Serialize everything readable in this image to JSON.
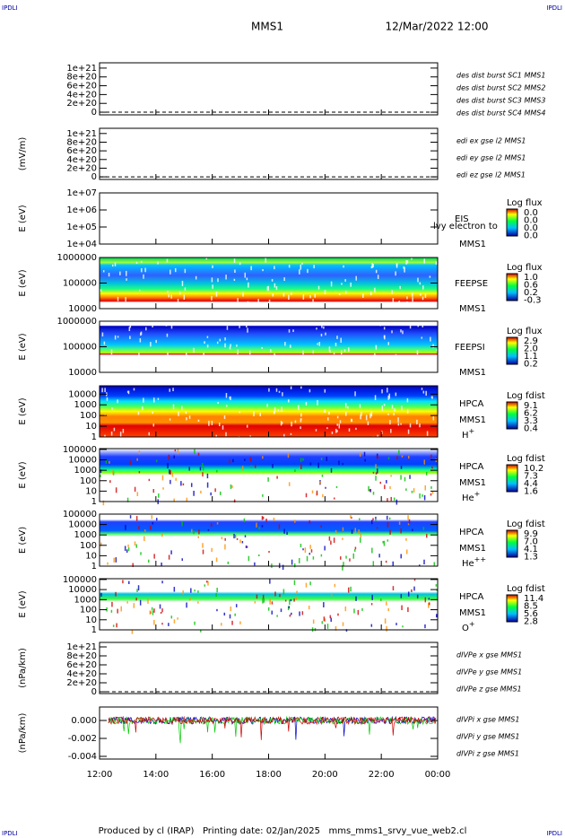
{
  "header": {
    "corner": "IPDLI",
    "spacecraft": "MMS1",
    "datetime": "12/Mar/2022 12:00"
  },
  "footer": "Produced by cl (IRAP)   Printing date: 02/Jan/2025   mms_mms1_srvy_vue_web2.cl",
  "chart_data": [
    {
      "type": "line",
      "ylabel": "",
      "yscale": "linear",
      "zero_line": true,
      "ylim": [
        -6e+19,
        1.12e+21
      ],
      "yticks": [
        0,
        {
          "value": 2e+20,
          "label": "2e+20"
        },
        {
          "value": 4e+20,
          "label": "4e+20"
        },
        {
          "value": 6e+20,
          "label": "6e+20"
        },
        {
          "value": 8e+20,
          "label": "8e+20"
        },
        {
          "value": 1e+21,
          "label": "1e+21"
        }
      ],
      "legend": [
        {
          "name": "des dist burst SC1 MMS1",
          "color": "#0000c8"
        },
        {
          "name": "des dist burst SC2 MMS2",
          "color": "#d000d0"
        },
        {
          "name": "des dist burst SC3 MMS3",
          "color": "#d00000"
        },
        {
          "name": "des dist burst SC4 MMS4",
          "color": "#00c800"
        }
      ]
    },
    {
      "type": "line",
      "ylabel": "(mV/m)",
      "yscale": "linear",
      "zero_line": true,
      "ylim": [
        -6e+19,
        1.12e+21
      ],
      "yticks": [
        0,
        {
          "value": 2e+20,
          "label": "2e+20"
        },
        {
          "value": 4e+20,
          "label": "4e+20"
        },
        {
          "value": 6e+20,
          "label": "6e+20"
        },
        {
          "value": 8e+20,
          "label": "8e+20"
        },
        {
          "value": 1e+21,
          "label": "1e+21"
        }
      ],
      "legend": [
        {
          "name": "edi ex gse l2 MMS1",
          "color": "#d00000"
        },
        {
          "name": "edi ey gse l2 MMS1",
          "color": "#00c800"
        },
        {
          "name": "edi ez gse l2 MMS1",
          "color": "#0000c8"
        }
      ]
    },
    {
      "type": "spectrogram",
      "ylabel": "E (eV)",
      "yscale": "log",
      "ylim": [
        10000,
        10000000
      ],
      "yticks": [
        {
          "value": 10000,
          "label": "1e+04"
        },
        {
          "value": 100000,
          "label": "1e+05"
        },
        {
          "value": 1000000,
          "label": "1e+06"
        },
        {
          "value": 10000000,
          "label": "1e+07"
        }
      ],
      "instrument": "EIS",
      "probe": "MMS1",
      "overlay": "lvy electron to",
      "colorbar": {
        "title": "Log flux",
        "labels": [
          "0.0",
          "0.0",
          "0.0",
          "0.0"
        ]
      }
    },
    {
      "type": "spectrogram",
      "ylabel": "E (eV)",
      "yscale": "log",
      "ylim": [
        10000,
        1000000
      ],
      "yticks": [
        10000,
        100000,
        1000000
      ],
      "instrument": "FEEPSE",
      "probe": "MMS1",
      "colorbar": {
        "title": "Log flux",
        "labels": [
          "1.0",
          "0.6",
          "0.2",
          "-0.3"
        ]
      }
    },
    {
      "type": "spectrogram",
      "ylabel": "E (eV)",
      "yscale": "log",
      "ylim": [
        10000,
        1000000
      ],
      "yticks": [
        10000,
        100000,
        1000000
      ],
      "instrument": "FEEPSI",
      "probe": "MMS1",
      "colorbar": {
        "title": "Log flux",
        "labels": [
          "2.9",
          "2.0",
          "1.1",
          "0.2"
        ]
      }
    },
    {
      "type": "spectrogram",
      "ylabel": "E (eV)",
      "yscale": "log",
      "ylim": [
        1,
        60000
      ],
      "yticks": [
        1,
        10,
        100,
        1000,
        10000
      ],
      "instrument": "HPCA",
      "probe": "MMS1",
      "species": {
        "base": "H",
        "charge": "+"
      },
      "colorbar": {
        "title": "Log fdist",
        "labels": [
          "9.1",
          "6.2",
          "3.3",
          "0.4"
        ]
      }
    },
    {
      "type": "spectrogram",
      "ylabel": "E (eV)",
      "yscale": "log",
      "ylim": [
        1,
        120000
      ],
      "yticks": [
        1,
        10,
        100,
        1000,
        10000,
        100000
      ],
      "instrument": "HPCA",
      "probe": "MMS1",
      "species": {
        "base": "He",
        "charge": "+"
      },
      "colorbar": {
        "title": "Log fdist",
        "labels": [
          "10.2",
          "7.3",
          "4.4",
          "1.6"
        ]
      }
    },
    {
      "type": "spectrogram",
      "ylabel": "E (eV)",
      "yscale": "log",
      "ylim": [
        1,
        100000
      ],
      "yticks": [
        1,
        10,
        100,
        1000,
        10000,
        100000
      ],
      "instrument": "HPCA",
      "probe": "MMS1",
      "species": {
        "base": "He",
        "charge": "++"
      },
      "colorbar": {
        "title": "Log fdist",
        "labels": [
          "9.9",
          "7.0",
          "4.1",
          "1.3"
        ]
      }
    },
    {
      "type": "spectrogram",
      "ylabel": "E (eV)",
      "yscale": "log",
      "ylim": [
        1,
        120000
      ],
      "yticks": [
        1,
        10,
        100,
        1000,
        10000,
        100000
      ],
      "instrument": "HPCA",
      "probe": "MMS1",
      "species": {
        "base": "O",
        "charge": "+"
      },
      "colorbar": {
        "title": "Log fdist",
        "labels": [
          "11.4",
          "8.5",
          "5.6",
          "2.8"
        ]
      }
    },
    {
      "type": "line",
      "ylabel": "(nPa/km)",
      "yscale": "linear",
      "zero_line": true,
      "ylim": [
        -4e+19,
        1.1e+21
      ],
      "yticks": [
        0,
        {
          "value": 2e+20,
          "label": "2e+20"
        },
        {
          "value": 4e+20,
          "label": "4e+20"
        },
        {
          "value": 6e+20,
          "label": "6e+20"
        },
        {
          "value": 8e+20,
          "label": "8e+20"
        },
        {
          "value": 1e+21,
          "label": "1e+21"
        }
      ],
      "legend": [
        {
          "name": "dIVPe x gse MMS1",
          "color": "#d00000"
        },
        {
          "name": "dIVPe y gse MMS1",
          "color": "#00c800"
        },
        {
          "name": "dIVPe z gse MMS1",
          "color": "#0000c8"
        }
      ]
    },
    {
      "type": "line",
      "ylabel": "(nPa/km)",
      "yscale": "linear",
      "zero_line": false,
      "ylim": [
        -0.0043,
        0.0015
      ],
      "yticks": [
        -0.004,
        -0.002,
        {
          "value": 0,
          "label": "0.000"
        }
      ],
      "legend": [
        {
          "name": "dIVPi x gse MMS1",
          "color": "#d00000"
        },
        {
          "name": "dIVPi y gse MMS1",
          "color": "#00c800"
        },
        {
          "name": "dIVPi z gse MMS1",
          "color": "#0000c8"
        }
      ],
      "xlim": [
        12,
        24
      ],
      "xticks": [
        {
          "value": 12,
          "label": "12:00"
        },
        {
          "value": 14,
          "label": "14:00"
        },
        {
          "value": 16,
          "label": "16:00"
        },
        {
          "value": 18,
          "label": "18:00"
        },
        {
          "value": 20,
          "label": "20:00"
        },
        {
          "value": 22,
          "label": "22:00"
        },
        {
          "value": 24,
          "label": "00:00"
        }
      ]
    }
  ]
}
